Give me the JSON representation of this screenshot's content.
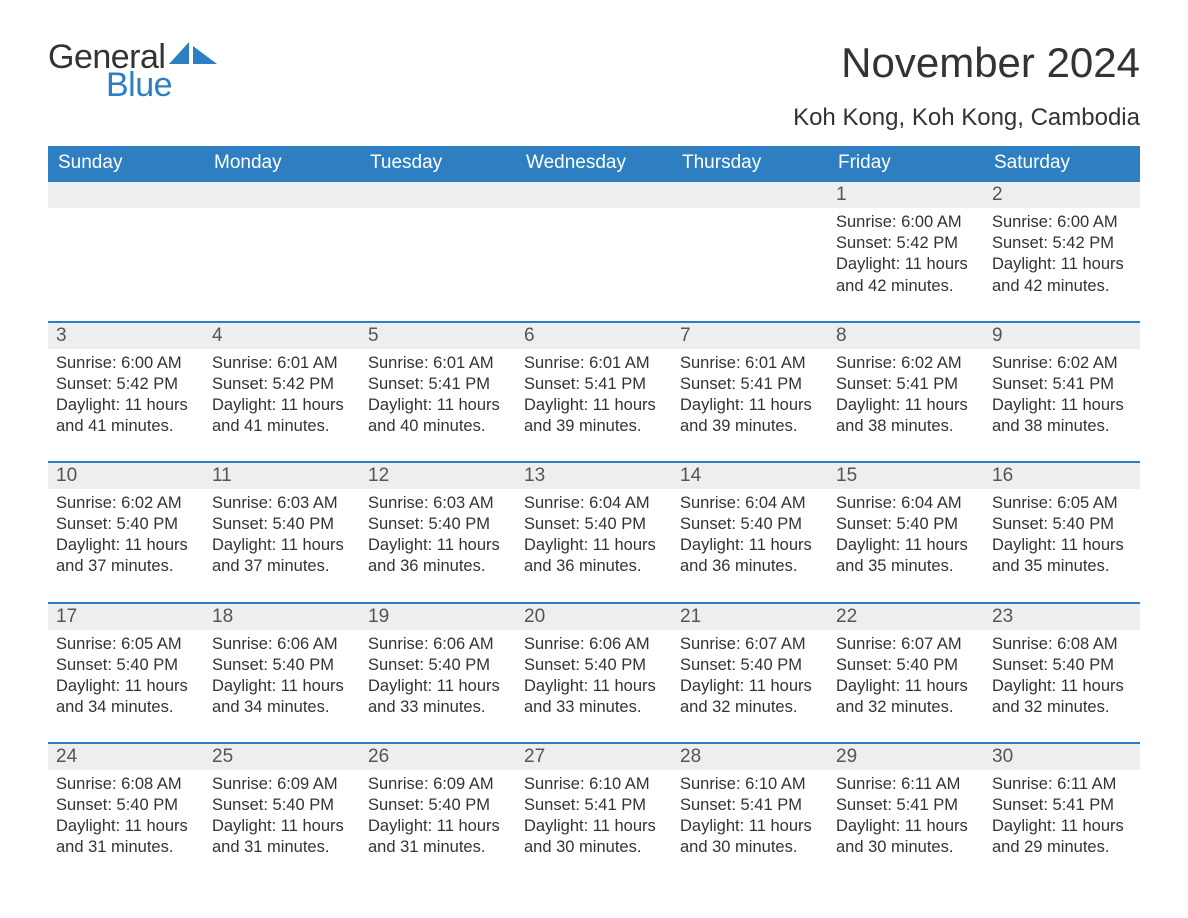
{
  "logo": {
    "text_general": "General",
    "text_blue": "Blue"
  },
  "title": "November 2024",
  "location": "Koh Kong, Koh Kong, Cambodia",
  "colors": {
    "header_bg": "#2d7fc1",
    "header_text": "#ffffff",
    "row_border": "#2d7fc1",
    "daynum_bg": "#eeeeee",
    "body_text": "#333333",
    "logo_blue": "#2d7fc1",
    "page_bg": "#ffffff"
  },
  "typography": {
    "title_fontsize": 42,
    "location_fontsize": 24,
    "header_fontsize": 19,
    "daynum_fontsize": 19,
    "body_fontsize": 16.5,
    "logo_fontsize": 34
  },
  "weekdays": [
    "Sunday",
    "Monday",
    "Tuesday",
    "Wednesday",
    "Thursday",
    "Friday",
    "Saturday"
  ],
  "calendar": {
    "type": "table",
    "columns": 7,
    "weeks": [
      {
        "days": [
          {
            "empty": true
          },
          {
            "empty": true
          },
          {
            "empty": true
          },
          {
            "empty": true
          },
          {
            "empty": true
          },
          {
            "num": "1",
            "sunrise": "6:00 AM",
            "sunset": "5:42 PM",
            "daylight": "11 hours and 42 minutes."
          },
          {
            "num": "2",
            "sunrise": "6:00 AM",
            "sunset": "5:42 PM",
            "daylight": "11 hours and 42 minutes."
          }
        ]
      },
      {
        "days": [
          {
            "num": "3",
            "sunrise": "6:00 AM",
            "sunset": "5:42 PM",
            "daylight": "11 hours and 41 minutes."
          },
          {
            "num": "4",
            "sunrise": "6:01 AM",
            "sunset": "5:42 PM",
            "daylight": "11 hours and 41 minutes."
          },
          {
            "num": "5",
            "sunrise": "6:01 AM",
            "sunset": "5:41 PM",
            "daylight": "11 hours and 40 minutes."
          },
          {
            "num": "6",
            "sunrise": "6:01 AM",
            "sunset": "5:41 PM",
            "daylight": "11 hours and 39 minutes."
          },
          {
            "num": "7",
            "sunrise": "6:01 AM",
            "sunset": "5:41 PM",
            "daylight": "11 hours and 39 minutes."
          },
          {
            "num": "8",
            "sunrise": "6:02 AM",
            "sunset": "5:41 PM",
            "daylight": "11 hours and 38 minutes."
          },
          {
            "num": "9",
            "sunrise": "6:02 AM",
            "sunset": "5:41 PM",
            "daylight": "11 hours and 38 minutes."
          }
        ]
      },
      {
        "days": [
          {
            "num": "10",
            "sunrise": "6:02 AM",
            "sunset": "5:40 PM",
            "daylight": "11 hours and 37 minutes."
          },
          {
            "num": "11",
            "sunrise": "6:03 AM",
            "sunset": "5:40 PM",
            "daylight": "11 hours and 37 minutes."
          },
          {
            "num": "12",
            "sunrise": "6:03 AM",
            "sunset": "5:40 PM",
            "daylight": "11 hours and 36 minutes."
          },
          {
            "num": "13",
            "sunrise": "6:04 AM",
            "sunset": "5:40 PM",
            "daylight": "11 hours and 36 minutes."
          },
          {
            "num": "14",
            "sunrise": "6:04 AM",
            "sunset": "5:40 PM",
            "daylight": "11 hours and 36 minutes."
          },
          {
            "num": "15",
            "sunrise": "6:04 AM",
            "sunset": "5:40 PM",
            "daylight": "11 hours and 35 minutes."
          },
          {
            "num": "16",
            "sunrise": "6:05 AM",
            "sunset": "5:40 PM",
            "daylight": "11 hours and 35 minutes."
          }
        ]
      },
      {
        "days": [
          {
            "num": "17",
            "sunrise": "6:05 AM",
            "sunset": "5:40 PM",
            "daylight": "11 hours and 34 minutes."
          },
          {
            "num": "18",
            "sunrise": "6:06 AM",
            "sunset": "5:40 PM",
            "daylight": "11 hours and 34 minutes."
          },
          {
            "num": "19",
            "sunrise": "6:06 AM",
            "sunset": "5:40 PM",
            "daylight": "11 hours and 33 minutes."
          },
          {
            "num": "20",
            "sunrise": "6:06 AM",
            "sunset": "5:40 PM",
            "daylight": "11 hours and 33 minutes."
          },
          {
            "num": "21",
            "sunrise": "6:07 AM",
            "sunset": "5:40 PM",
            "daylight": "11 hours and 32 minutes."
          },
          {
            "num": "22",
            "sunrise": "6:07 AM",
            "sunset": "5:40 PM",
            "daylight": "11 hours and 32 minutes."
          },
          {
            "num": "23",
            "sunrise": "6:08 AM",
            "sunset": "5:40 PM",
            "daylight": "11 hours and 32 minutes."
          }
        ]
      },
      {
        "days": [
          {
            "num": "24",
            "sunrise": "6:08 AM",
            "sunset": "5:40 PM",
            "daylight": "11 hours and 31 minutes."
          },
          {
            "num": "25",
            "sunrise": "6:09 AM",
            "sunset": "5:40 PM",
            "daylight": "11 hours and 31 minutes."
          },
          {
            "num": "26",
            "sunrise": "6:09 AM",
            "sunset": "5:40 PM",
            "daylight": "11 hours and 31 minutes."
          },
          {
            "num": "27",
            "sunrise": "6:10 AM",
            "sunset": "5:41 PM",
            "daylight": "11 hours and 30 minutes."
          },
          {
            "num": "28",
            "sunrise": "6:10 AM",
            "sunset": "5:41 PM",
            "daylight": "11 hours and 30 minutes."
          },
          {
            "num": "29",
            "sunrise": "6:11 AM",
            "sunset": "5:41 PM",
            "daylight": "11 hours and 30 minutes."
          },
          {
            "num": "30",
            "sunrise": "6:11 AM",
            "sunset": "5:41 PM",
            "daylight": "11 hours and 29 minutes."
          }
        ]
      }
    ]
  },
  "labels": {
    "sunrise_prefix": "Sunrise: ",
    "sunset_prefix": "Sunset: ",
    "daylight_prefix": "Daylight: "
  }
}
